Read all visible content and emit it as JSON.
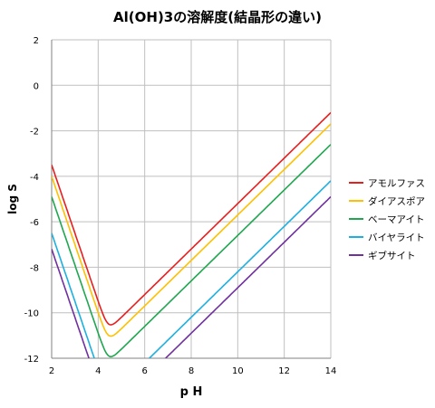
{
  "chart_data": {
    "type": "line",
    "title": "Al(OH)3の溶解度(結晶形の違い)",
    "xlabel": "p H",
    "ylabel": "log S",
    "xlim": [
      2,
      14
    ],
    "ylim": [
      -12,
      2
    ],
    "xticks": [
      "2",
      "4",
      "6",
      "8",
      "10",
      "12",
      "14"
    ],
    "yticks": [
      "2",
      "0",
      "-2",
      "-4",
      "-6",
      "-8",
      "-10",
      "-12"
    ],
    "grid": true,
    "legend_position": "right",
    "series": [
      {
        "name": "アモルファス",
        "color": "#e81e1e",
        "logK1": 2.5,
        "logK2": -15.2
      },
      {
        "name": "ダイアスポア",
        "color": "#ffc000",
        "logK1": 2.0,
        "logK2": -15.7
      },
      {
        "name": "ベーマアイト",
        "color": "#1fa750",
        "logK1": 1.1,
        "logK2": -16.6
      },
      {
        "name": "バイヤライト",
        "color": "#1cb0e0",
        "logK1": -0.5,
        "logK2": -18.2
      },
      {
        "name": "ギブサイト",
        "color": "#7030a0",
        "logK1": -1.2,
        "logK2": -18.9
      }
    ]
  }
}
